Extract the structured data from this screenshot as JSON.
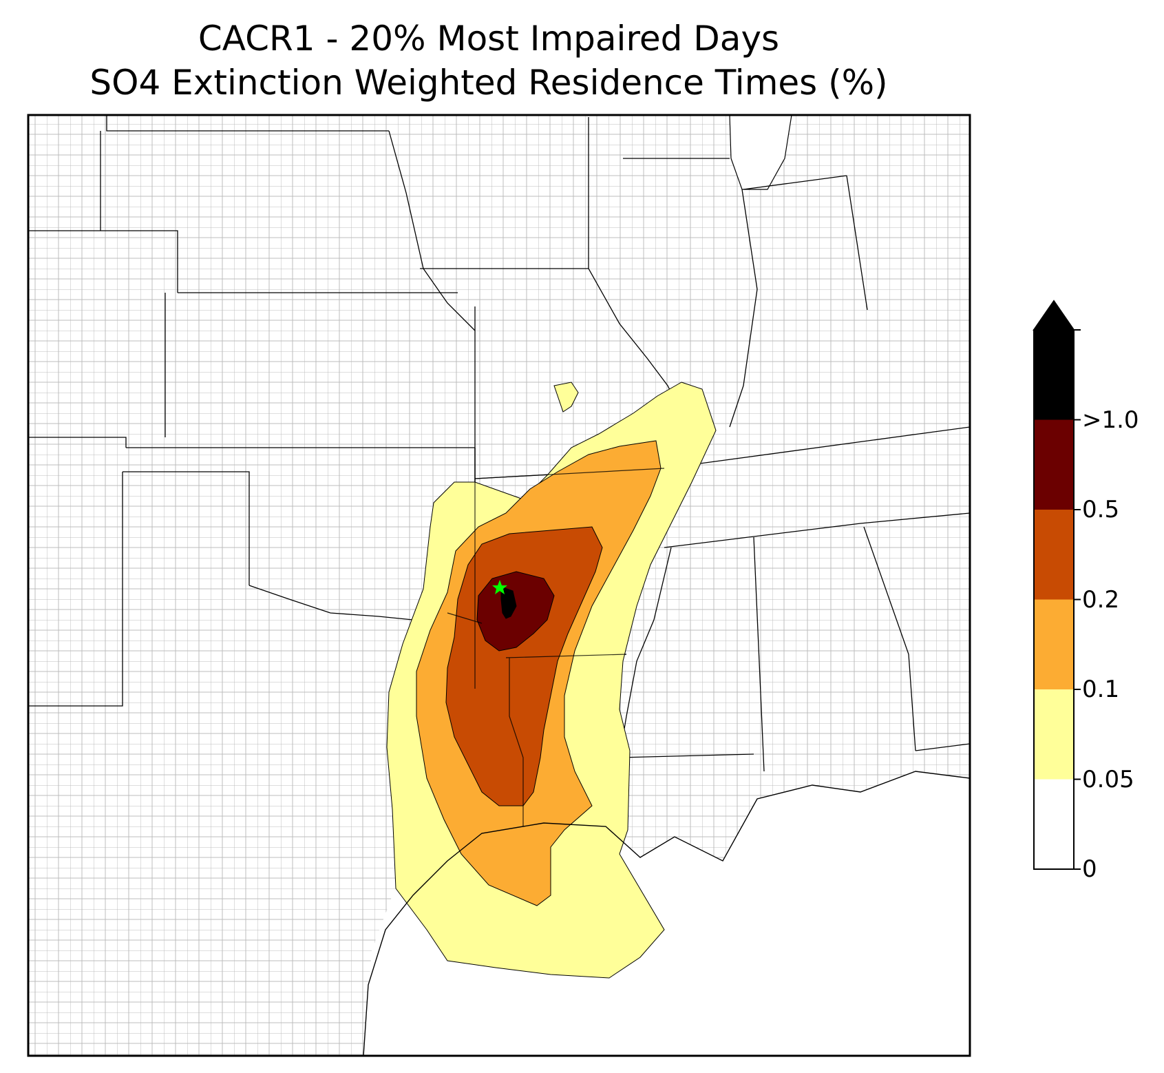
{
  "title_line1": "CACR1 - 20% Most Impaired Days",
  "title_line2": "SO4 Extinction Weighted Residence Times (%)",
  "site_marker": {
    "symbol": "star",
    "color": "#00ff00"
  },
  "colorbar": {
    "extend": "max",
    "bands": [
      {
        "range": "0–0.05",
        "color": "#ffffff"
      },
      {
        "range": "0.05–0.1",
        "color": "#ffff99"
      },
      {
        "range": "0.1–0.2",
        "color": "#fcac33"
      },
      {
        "range": "0.2–0.5",
        "color": "#c84b03"
      },
      {
        "range": "0.5–1.0",
        "color": "#6b0000"
      },
      {
        "range": ">1.0",
        "color": "#000000"
      }
    ],
    "tick_labels": [
      "0",
      "0.05",
      "0.1",
      "0.2",
      "0.5",
      ">1.0"
    ]
  }
}
